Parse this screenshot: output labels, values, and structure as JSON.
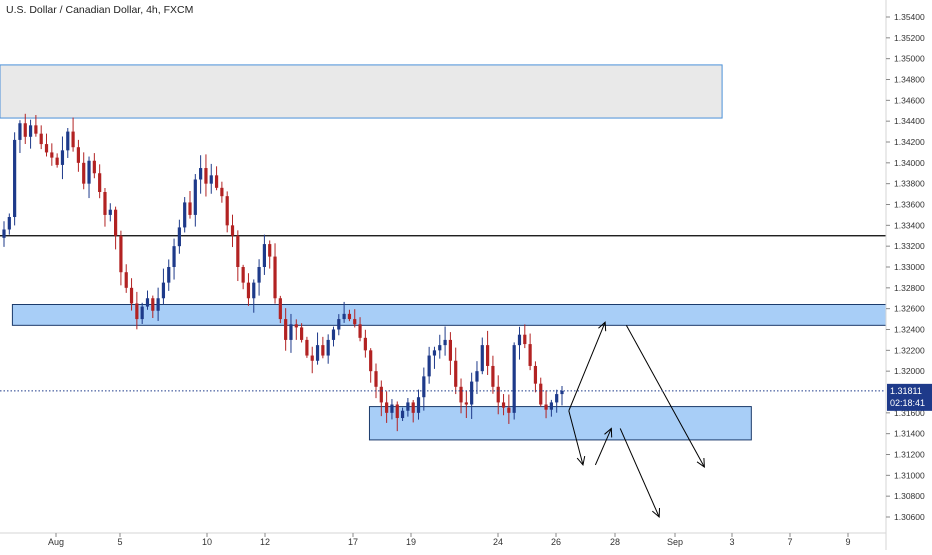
{
  "header": {
    "title": "U.S. Dollar / Canadian Dollar, 4h, FXCM"
  },
  "price_axis": {
    "ticks": [
      "1.35400",
      "1.35200",
      "1.35000",
      "1.34800",
      "1.34600",
      "1.34400",
      "1.34200",
      "1.34000",
      "1.33800",
      "1.33600",
      "1.33400",
      "1.33200",
      "1.33000",
      "1.32800",
      "1.32600",
      "1.32400",
      "1.32200",
      "1.32000",
      "1.31800",
      "1.31600",
      "1.31400",
      "1.31200",
      "1.31000",
      "1.30800",
      "1.30600"
    ]
  },
  "time_axis": {
    "labels": [
      "Aug",
      "5",
      "10",
      "12",
      "17",
      "19",
      "24",
      "26",
      "28",
      "Sep",
      "3",
      "7",
      "9"
    ]
  },
  "current_price": {
    "label": "1.31811",
    "value": 1.31811,
    "countdown": "02:18:41"
  },
  "colors": {
    "up": "#1e3a8a",
    "down": "#b22222",
    "zone_blue": "#a8cef7",
    "zone_blue_border": "#1b3a6b",
    "zone_gray": "#e9e9e9",
    "zone_gray_border": "#4a90d9",
    "price_tag": "#1e3a8a"
  },
  "chart_data": {
    "type": "candlestick",
    "timeframe": "4h",
    "ylim": [
      1.3048,
      1.3556
    ],
    "close_path": [
      1.3336,
      1.3348,
      1.3422,
      1.3438,
      1.3425,
      1.3436,
      1.3428,
      1.3418,
      1.341,
      1.3405,
      1.3398,
      1.3412,
      1.343,
      1.3415,
      1.34,
      1.338,
      1.3402,
      1.339,
      1.3372,
      1.335,
      1.3355,
      1.333,
      1.3295,
      1.328,
      1.3265,
      1.325,
      1.3262,
      1.327,
      1.3258,
      1.327,
      1.3285,
      1.33,
      1.332,
      1.3338,
      1.3362,
      1.335,
      1.3384,
      1.3395,
      1.338,
      1.3388,
      1.3376,
      1.3368,
      1.334,
      1.333,
      1.33,
      1.3285,
      1.327,
      1.3285,
      1.33,
      1.3322,
      1.331,
      1.327,
      1.325,
      1.323,
      1.3245,
      1.3242,
      1.323,
      1.3215,
      1.321,
      1.3225,
      1.3215,
      1.323,
      1.324,
      1.325,
      1.3255,
      1.325,
      1.3245,
      1.3232,
      1.322,
      1.32,
      1.3185,
      1.317,
      1.316,
      1.3168,
      1.3155,
      1.3162,
      1.317,
      1.316,
      1.3175,
      1.3195,
      1.3215,
      1.322,
      1.3225,
      1.323,
      1.321,
      1.3185,
      1.317,
      1.3168,
      1.319,
      1.32,
      1.3225,
      1.3205,
      1.3185,
      1.317,
      1.3165,
      1.316,
      1.3225,
      1.3235,
      1.3226,
      1.3205,
      1.3188,
      1.3168,
      1.3163,
      1.317,
      1.3178,
      1.3181
    ],
    "zones": [
      {
        "kind": "supply",
        "color": "gray",
        "y_top": 1.3494,
        "y_bottom": 1.3443,
        "x_start_pct": 0,
        "x_end_pct": 0.815
      },
      {
        "kind": "resistance",
        "color": "blue",
        "y_top": 1.3264,
        "y_bottom": 1.3244,
        "x_start_pct": 0.014,
        "x_end_pct": 1.0
      },
      {
        "kind": "support",
        "color": "blue",
        "y_top": 1.3166,
        "y_bottom": 1.3134,
        "x_start_pct": 0.417,
        "x_end_pct": 0.848
      }
    ],
    "horizontal_lines": [
      {
        "y": 1.333,
        "style": "solid",
        "color": "#000000"
      }
    ],
    "scenario_arrows": [
      {
        "from": [
          0.642,
          1.3162
        ],
        "to": [
          0.683,
          1.3247
        ]
      },
      {
        "from": [
          0.642,
          1.3162
        ],
        "to": [
          0.658,
          1.311
        ]
      },
      {
        "from": [
          0.672,
          1.311
        ],
        "to": [
          0.69,
          1.3145
        ]
      },
      {
        "from": [
          0.7,
          1.3145
        ],
        "to": [
          0.744,
          1.306
        ]
      },
      {
        "from": [
          0.707,
          1.3244
        ],
        "to": [
          0.795,
          1.3108
        ]
      }
    ],
    "grid": false
  }
}
